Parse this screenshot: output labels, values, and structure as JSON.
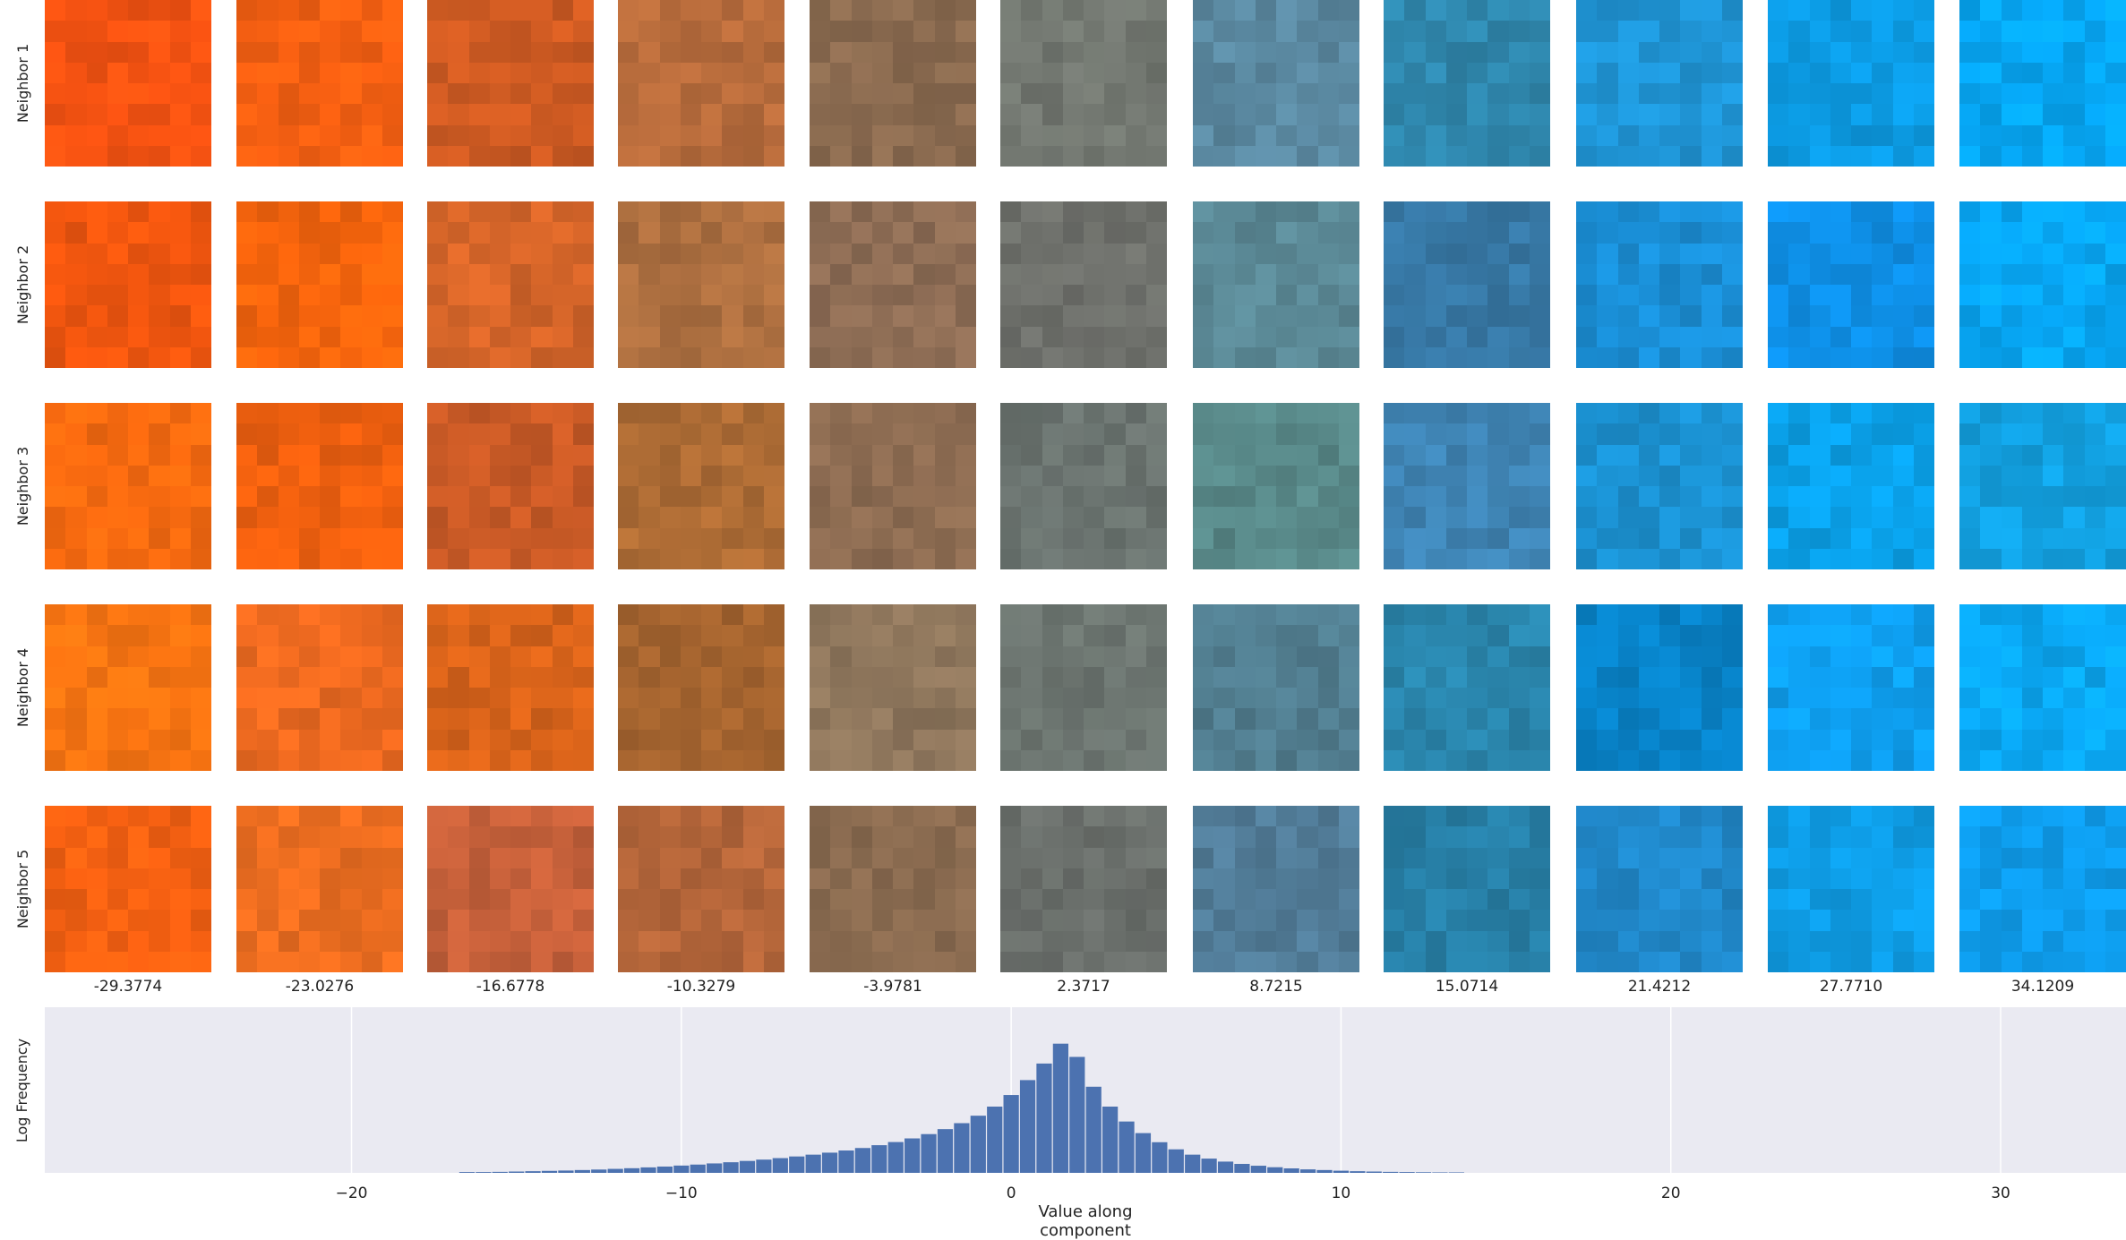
{
  "chart_data": {
    "type": "bar",
    "panels": "image-grid-with-histogram",
    "row_labels": [
      "Neighbor 1",
      "Neighbor 2",
      "Neighbor 3",
      "Neighbor 4",
      "Neighbor 5"
    ],
    "column_values": [
      "-29.3774",
      "-23.0276",
      "-16.6778",
      "-10.3279",
      "-3.9781",
      "2.3717",
      "8.7215",
      "15.0714",
      "21.4212",
      "27.7710",
      "34.1209"
    ],
    "tile_colors": [
      [
        "#f75312",
        "#f76012",
        "#cd5a22",
        "#b86c3c",
        "#8b6b50",
        "#727770",
        "#5a88a0",
        "#2f87ad",
        "#1f95d6",
        "#0c9ae2",
        "#06a7f5"
      ],
      [
        "#f1560f",
        "#f8650d",
        "#d56529",
        "#ad6f40",
        "#8e6d55",
        "#6f716c",
        "#5b8996",
        "#3778a5",
        "#1a8ed5",
        "#0e8fe6",
        "#07a6f4"
      ],
      [
        "#f86a10",
        "#f0600f",
        "#c95a26",
        "#ae6c35",
        "#8d6c52",
        "#6b7470",
        "#588888",
        "#3f84b4",
        "#1b91d1",
        "#0aa0e8",
        "#12a0e0"
      ],
      [
        "#fb7512",
        "#ee6a20",
        "#d8631a",
        "#a5642f",
        "#8e765c",
        "#6c7570",
        "#517d8f",
        "#2a86ad",
        "#0882c7",
        "#0e9ff0",
        "#0aa7f3"
      ],
      [
        "#f76112",
        "#ec6d20",
        "#c5603a",
        "#b5663a",
        "#8a6b50",
        "#6b706c",
        "#527d99",
        "#277fa6",
        "#2087c8",
        "#0e9de6",
        "#0e9ded"
      ]
    ],
    "histogram": {
      "x": [
        -16.5,
        -16.0,
        -15.5,
        -15.0,
        -14.5,
        -14.0,
        -13.5,
        -13.0,
        -12.5,
        -12.0,
        -11.5,
        -11.0,
        -10.5,
        -10.0,
        -9.5,
        -9.0,
        -8.5,
        -8.0,
        -7.5,
        -7.0,
        -6.5,
        -6.0,
        -5.5,
        -5.0,
        -4.5,
        -4.0,
        -3.5,
        -3.0,
        -2.5,
        -2.0,
        -1.5,
        -1.0,
        -0.5,
        0.0,
        0.5,
        1.0,
        1.5,
        2.0,
        2.5,
        3.0,
        3.5,
        4.0,
        4.5,
        5.0,
        5.5,
        6.0,
        6.5,
        7.0,
        7.5,
        8.0,
        8.5,
        9.0,
        9.5,
        10.0,
        10.5,
        11.0,
        11.5,
        12.0,
        12.5,
        13.0,
        13.5
      ],
      "values": [
        0.5,
        0.5,
        0.6,
        0.8,
        1.0,
        1.2,
        1.4,
        1.7,
        2.0,
        2.4,
        2.8,
        3.3,
        3.8,
        4.4,
        5.0,
        5.7,
        6.4,
        7.2,
        8.0,
        8.9,
        9.9,
        11.0,
        12.2,
        13.5,
        15.0,
        16.7,
        18.6,
        20.8,
        23.4,
        26.4,
        30.0,
        34.5,
        40.0,
        47.0,
        56.0,
        66.0,
        78.0,
        70.0,
        52.0,
        40.0,
        31.0,
        24.0,
        18.5,
        14.2,
        11.0,
        8.6,
        6.8,
        5.4,
        4.3,
        3.4,
        2.7,
        2.1,
        1.7,
        1.3,
        1.0,
        0.8,
        0.6,
        0.5,
        0.4,
        0.3,
        0.3
      ],
      "xlim": [
        -29.3,
        33.8
      ],
      "ylim": [
        0,
        100
      ],
      "xticks": [
        -20,
        -10,
        0,
        10,
        20,
        30
      ],
      "xtick_labels": [
        "−20",
        "−10",
        "0",
        "10",
        "20",
        "30"
      ],
      "xlabel": "Value along component",
      "ylabel": "Log Frequency",
      "grid": true,
      "bar_color": "#4c72b0",
      "background": "#eaeaf2"
    }
  }
}
